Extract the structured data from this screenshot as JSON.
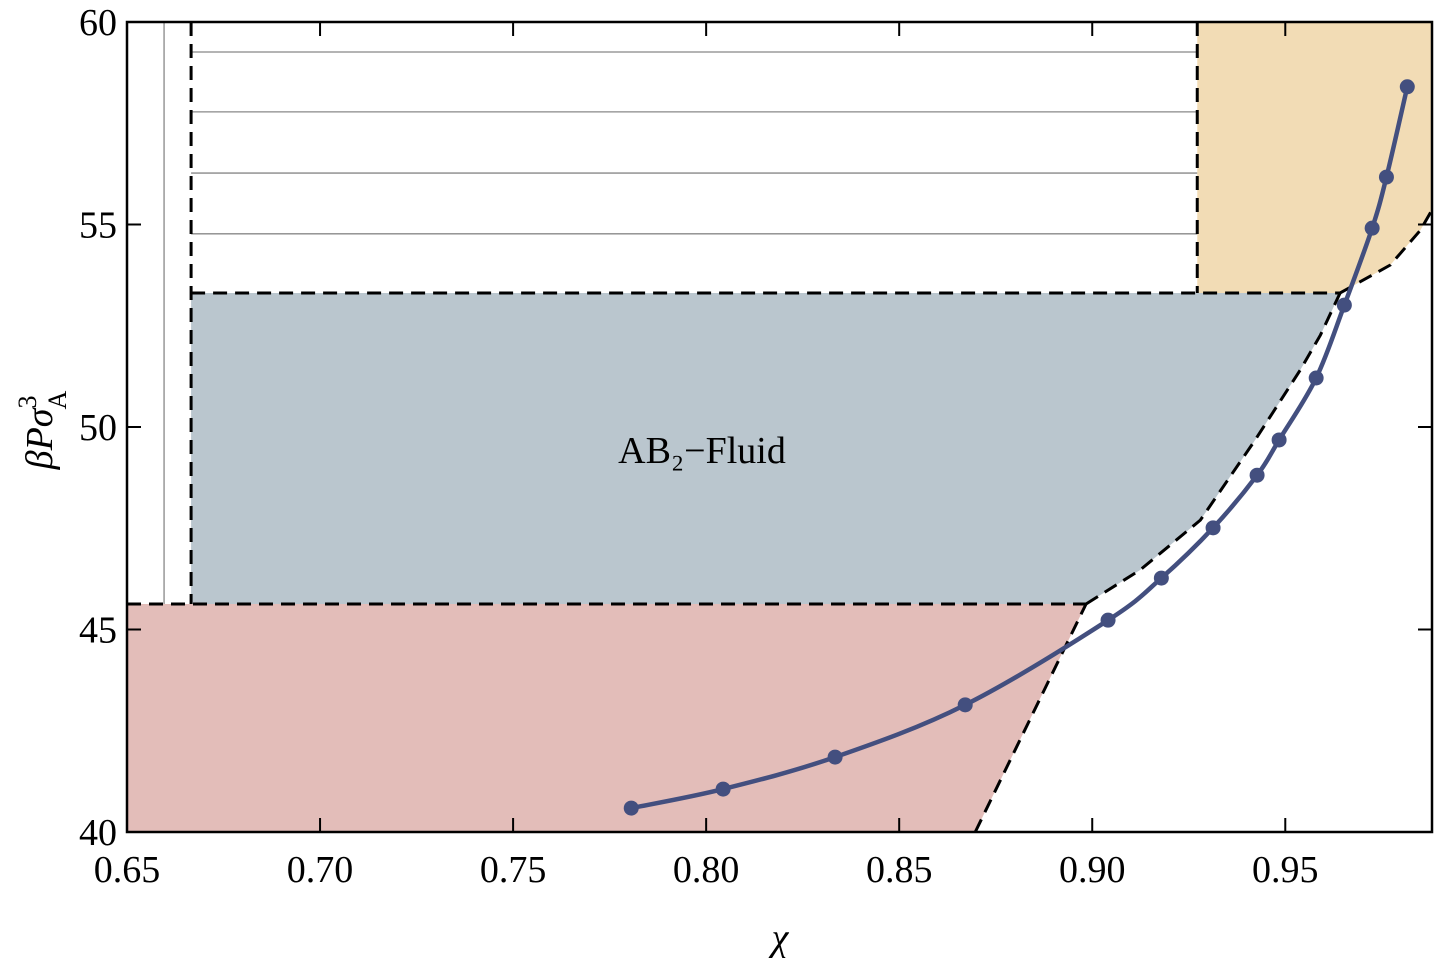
{
  "chart_data": {
    "type": "line",
    "xlabel": "χ",
    "ylabel": "βPσ",
    "ylabel_sup": "3",
    "ylabel_sub": "A",
    "annotation": "AB₂−Fluid",
    "x": [
      0.7806,
      0.8044,
      0.8334,
      0.8671,
      0.9041,
      0.9179,
      0.9313,
      0.9427,
      0.9484,
      0.958,
      0.9653,
      0.9725,
      0.9762,
      0.9816
    ],
    "values": [
      40.59,
      41.06,
      41.85,
      43.14,
      45.23,
      46.27,
      47.51,
      48.81,
      49.68,
      51.21,
      53.01,
      54.91,
      56.17,
      58.4
    ],
    "color": "#434f7f",
    "xlim": [
      0.65,
      0.988
    ],
    "ylim": [
      40,
      60
    ],
    "xticks": [
      0.65,
      {
        "value": 0.7,
        "label": "0.70"
      },
      0.75,
      {
        "value": 0.8,
        "label": "0.80"
      },
      0.85,
      {
        "value": 0.9,
        "label": "0.90"
      },
      0.95
    ],
    "yticks": [
      40,
      45,
      50,
      55,
      60
    ],
    "regions": [
      {
        "color": "#e3bdb9",
        "x": [
          0.65,
          0.8984,
          0.8697,
          0.65
        ],
        "y": [
          45.63,
          45.63,
          40,
          40
        ]
      },
      {
        "color": "#bac6ce",
        "x": [
          0.6666,
          0.9642,
          0.9591,
          0.9539,
          0.9422,
          0.928,
          0.9124,
          0.8984,
          0.6666
        ],
        "y": [
          53.31,
          53.31,
          52.27,
          51.41,
          49.68,
          47.7,
          46.47,
          45.63,
          45.63
        ]
      },
      {
        "color": "#f2dcb5",
        "x": [
          0.9272,
          0.988,
          0.988,
          0.985,
          0.9772,
          0.9642,
          0.9272
        ],
        "y": [
          60,
          60,
          55.36,
          54.86,
          54.0,
          53.31,
          53.31
        ]
      }
    ],
    "lines": [
      {
        "color": "#888888",
        "dashed": false,
        "x": [
          0.6596,
          0.6596
        ],
        "y": [
          60,
          45.63
        ]
      },
      {
        "color": "#888888",
        "dashed": false,
        "x": [
          0.6666,
          0.9272
        ],
        "y": [
          59.26,
          59.26
        ]
      },
      {
        "color": "#888888",
        "dashed": false,
        "x": [
          0.6666,
          0.9272
        ],
        "y": [
          57.78,
          57.78
        ]
      },
      {
        "color": "#888888",
        "dashed": false,
        "x": [
          0.6666,
          0.9272
        ],
        "y": [
          56.27,
          56.27
        ]
      },
      {
        "color": "#888888",
        "dashed": false,
        "x": [
          0.6666,
          0.9272
        ],
        "y": [
          54.77,
          54.77
        ]
      },
      {
        "color": "#000000",
        "dashed": true,
        "x": [
          0.6666,
          0.6666
        ],
        "y": [
          60,
          45.63
        ]
      },
      {
        "color": "#000000",
        "dashed": true,
        "x": [
          0.9272,
          0.9272
        ],
        "y": [
          60,
          53.31
        ]
      },
      {
        "color": "#000000",
        "dashed": true,
        "x": [
          0.6666,
          0.9642
        ],
        "y": [
          53.31,
          53.31
        ]
      },
      {
        "color": "#000000",
        "dashed": true,
        "x": [
          0.65,
          0.8984
        ],
        "y": [
          45.63,
          45.63
        ]
      },
      {
        "color": "#000000",
        "dashed": true,
        "x": [
          0.8984,
          0.9124,
          0.928,
          0.9422,
          0.9539,
          0.9591,
          0.9642
        ],
        "y": [
          45.63,
          46.47,
          47.7,
          49.68,
          51.41,
          52.27,
          53.31
        ]
      },
      {
        "color": "#000000",
        "dashed": true,
        "x": [
          0.8697,
          0.8984
        ],
        "y": [
          40,
          45.63
        ]
      },
      {
        "color": "#000000",
        "dashed": true,
        "x": [
          0.9642,
          0.9772,
          0.985,
          0.988
        ],
        "y": [
          53.31,
          54.0,
          54.86,
          55.36
        ]
      }
    ]
  }
}
